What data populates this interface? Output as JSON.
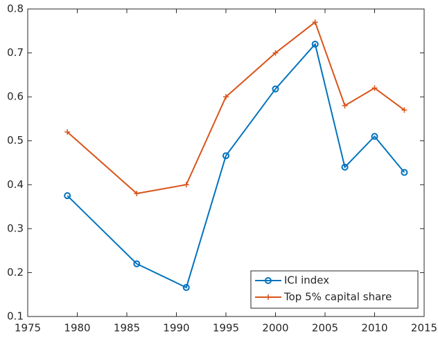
{
  "chart_data": {
    "type": "line",
    "x": [
      1979,
      1986,
      1991,
      1995,
      2000,
      2004,
      2007,
      2010,
      2013
    ],
    "series": [
      {
        "name": "ICI index",
        "color": "#0072bd",
        "marker": "o",
        "values": [
          0.375,
          0.22,
          0.166,
          0.466,
          0.618,
          0.72,
          0.44,
          0.51,
          0.428
        ]
      },
      {
        "name": "Top 5% capital share",
        "color": "#d95319",
        "marker": "+",
        "values": [
          0.52,
          0.38,
          0.4,
          0.6,
          0.7,
          0.77,
          0.58,
          0.62,
          0.57
        ]
      }
    ],
    "xlim": [
      1975,
      2015
    ],
    "xticks": [
      1975,
      1980,
      1985,
      1990,
      1995,
      2000,
      2005,
      2010,
      2015
    ],
    "ylim": [
      0.1,
      0.8
    ],
    "yticks": [
      0.1,
      0.2,
      0.3,
      0.4,
      0.5,
      0.6,
      0.7,
      0.8
    ],
    "grid": false,
    "legend": "lower right"
  }
}
